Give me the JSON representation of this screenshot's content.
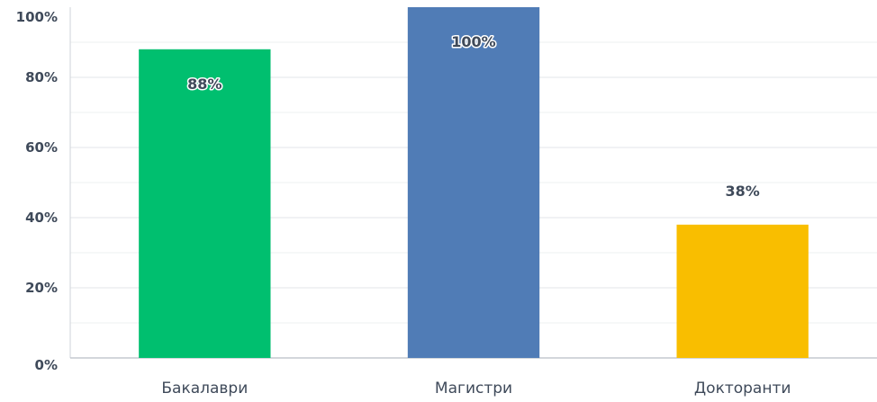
{
  "chart_data": {
    "type": "bar",
    "categories": [
      "Бакалаври",
      "Магистри",
      "Докторанти"
    ],
    "values": [
      88,
      100,
      38
    ],
    "value_labels": [
      "88%",
      "100%",
      "38%"
    ],
    "colors": [
      "#00bf6f",
      "#507cb6",
      "#f9be00"
    ],
    "ylim": [
      0,
      100
    ],
    "yticks": [
      "0%",
      "20%",
      "40%",
      "60%",
      "80%",
      "100%"
    ],
    "grid": true,
    "title": "",
    "xlabel": "",
    "ylabel": ""
  }
}
